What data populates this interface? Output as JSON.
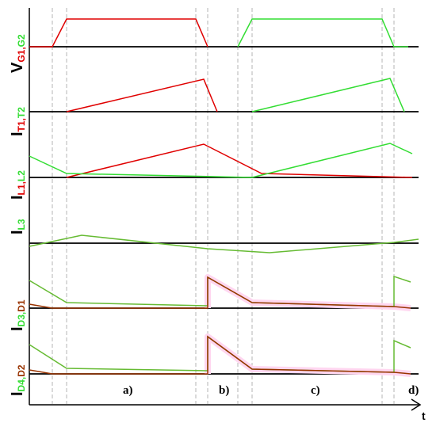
{
  "colors": {
    "red": "#e00000",
    "green": "#33dd33",
    "olive": "#66bb33",
    "brown": "#993300",
    "pinkHighlight": "#ffd6f0",
    "axis": "#000000",
    "guide": "#b5b5b5"
  },
  "labels": {
    "vg": {
      "main": "V",
      "sub1": "G1,",
      "sub2": "G2"
    },
    "it": {
      "main": "I",
      "sub1": "T1,",
      "sub2": "T2"
    },
    "il12": {
      "main": "I",
      "sub1": "L1,",
      "sub2": "L2"
    },
    "il3": {
      "main": "I",
      "sub": "L3"
    },
    "id3": {
      "main": "I",
      "sub1": "D3,",
      "sub2": "D1"
    },
    "id4": {
      "main": "I",
      "sub1": "D4,",
      "sub2": "D2"
    }
  },
  "phases": {
    "a": "a)",
    "b": "b)",
    "c": "c)",
    "d": "d)"
  },
  "axis_label": "t"
}
